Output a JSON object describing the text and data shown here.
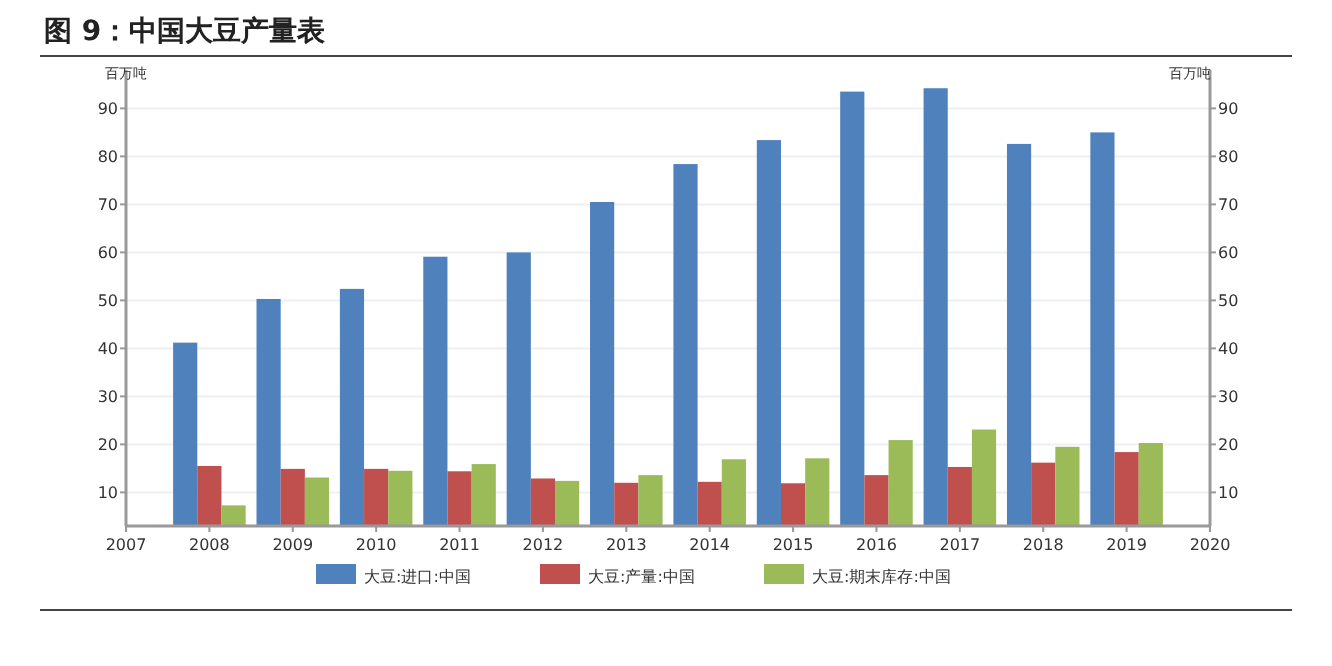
{
  "chart_data": {
    "type": "bar",
    "title": "图 9：中国大豆产量表",
    "ylabel": "百万吨",
    "y2label": "百万吨",
    "x": [
      2008,
      2009,
      2010,
      2011,
      2012,
      2013,
      2014,
      2015,
      2016,
      2017,
      2018,
      2019
    ],
    "xlim": [
      2007,
      2020
    ],
    "xticks": [
      2007,
      2008,
      2009,
      2010,
      2011,
      2012,
      2013,
      2014,
      2015,
      2016,
      2017,
      2018,
      2019,
      2020
    ],
    "ylim": [
      3,
      98
    ],
    "yticks": [
      10,
      20,
      30,
      40,
      50,
      60,
      70,
      80,
      90
    ],
    "y2lim": [
      3,
      98
    ],
    "y2ticks": [
      10,
      20,
      30,
      40,
      50,
      60,
      70,
      80,
      90
    ],
    "grid": "y",
    "legend": "bottom",
    "series": [
      {
        "name": "大豆:进口:中国",
        "color": "#4f81bd",
        "values": [
          41.2,
          50.3,
          52.4,
          59.1,
          60.0,
          70.5,
          78.4,
          83.4,
          93.5,
          94.2,
          82.6,
          85.0
        ]
      },
      {
        "name": "大豆:产量:中国",
        "color": "#c0504d",
        "values": [
          15.5,
          14.9,
          14.9,
          14.4,
          12.9,
          12.0,
          12.2,
          11.9,
          13.6,
          15.3,
          16.2,
          18.4
        ]
      },
      {
        "name": "大豆:期末库存:中国",
        "color": "#9bbb59",
        "values": [
          7.3,
          13.1,
          14.5,
          15.9,
          12.4,
          13.6,
          16.9,
          17.1,
          20.9,
          23.1,
          19.5,
          20.3
        ]
      }
    ]
  }
}
